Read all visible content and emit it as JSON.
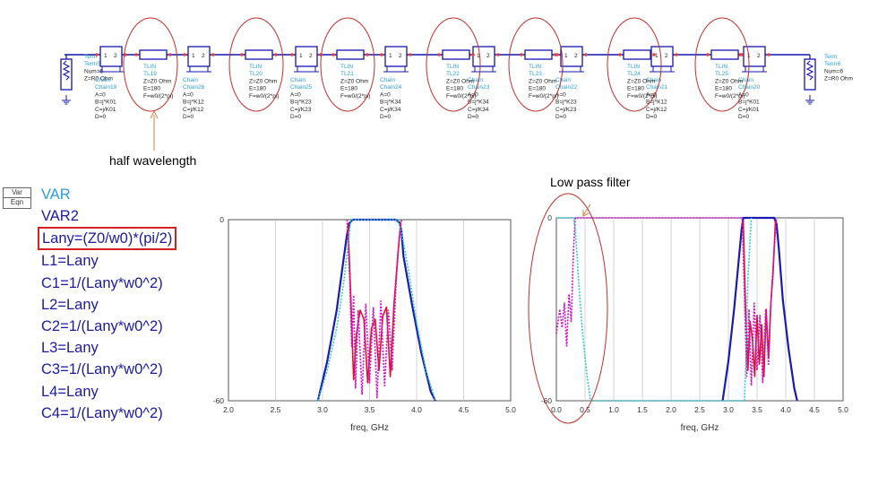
{
  "schematic": {
    "left_term": {
      "label": "Term",
      "name": "Term5",
      "num": "Num=5",
      "z": "Z=R0 Ohm"
    },
    "right_term": {
      "label": "Term",
      "name": "Term6",
      "num": "Num=6",
      "z": "Z=R0 Ohm"
    },
    "tlins": [
      {
        "kind": "TLIN",
        "name": "TL19",
        "z": "Z=Z0 Ohm",
        "e": "E=180",
        "f": "F=w0/(2*pi)"
      },
      {
        "kind": "TLIN",
        "name": "TL20",
        "z": "Z=Z0 Ohm",
        "e": "E=180",
        "f": "F=w0/(2*pi)"
      },
      {
        "kind": "TLIN",
        "name": "TL21",
        "z": "Z=Z0 Ohm",
        "e": "E=180",
        "f": "F=w0/(2*pi)"
      },
      {
        "kind": "TLIN",
        "name": "TL22",
        "z": "Z=Z0 Ohm",
        "e": "E=180",
        "f": "F=w0/(2*pi)"
      },
      {
        "kind": "TLIN",
        "name": "TL23",
        "z": "Z=Z0 Ohm",
        "e": "E=180",
        "f": "F=w0/(2*pi)"
      },
      {
        "kind": "TLIN",
        "name": "TL24",
        "z": "Z=Z0 Ohm",
        "e": "E=180",
        "f": "F=w0/(2*pi)"
      },
      {
        "kind": "TLIN",
        "name": "TL25",
        "z": "Z=Z0 Ohm",
        "e": "E=180",
        "f": "F=w0/(2*pi)"
      }
    ],
    "chains": [
      {
        "kind": "Chain",
        "name": "Chain19",
        "a": "A=0",
        "b": "B=j*K01",
        "c": "C=j/K01",
        "d": "D=0"
      },
      {
        "kind": "Chain",
        "name": "Chain26",
        "a": "A=0",
        "b": "B=j*K12",
        "c": "C=j/K12",
        "d": "D=0"
      },
      {
        "kind": "Chain",
        "name": "Chain25",
        "a": "A=0",
        "b": "B=j*K23",
        "c": "C=j/K23",
        "d": "D=0"
      },
      {
        "kind": "Chain",
        "name": "Chain24",
        "a": "A=0",
        "b": "B=j*K34",
        "c": "C=j/K34",
        "d": "D=0"
      },
      {
        "kind": "Chain",
        "name": "Chain23",
        "a": "A=0",
        "b": "B=j*K34",
        "c": "C=j/K34",
        "d": "D=0"
      },
      {
        "kind": "Chain",
        "name": "Chain22",
        "a": "A=0",
        "b": "B=j*K23",
        "c": "C=j/K23",
        "d": "D=0"
      },
      {
        "kind": "Chain",
        "name": "Chain21",
        "a": "A=0",
        "b": "B=j*K12",
        "c": "C=j/K12",
        "d": "D=0"
      },
      {
        "kind": "Chain",
        "name": "Chain20",
        "a": "A=0",
        "b": "B=j*K01",
        "c": "C=j/K01",
        "d": "D=0"
      }
    ],
    "pin1": "1",
    "pin2": "2"
  },
  "annotations": {
    "half_wavelength": "half wavelength",
    "low_pass": "Low pass filter"
  },
  "var_block": {
    "tag_line1": "Var",
    "tag_line2": "Eqn",
    "title": "VAR",
    "name": "VAR2",
    "equations": [
      "Lany=(Z0/w0)*(pi/2)",
      "L1=Lany",
      "C1=1/(Lany*w0^2)",
      "L2=Lany",
      "C2=1/(Lany*w0^2)",
      "L3=Lany",
      "C3=1/(Lany*w0^2)",
      "L4=Lany",
      "C4=1/(Lany*w0^2)"
    ]
  },
  "colors": {
    "wire": "#1414b4",
    "red_annotation": "#c0302a",
    "blue_trace": "#1a1ab0",
    "red_trace": "#e0102a",
    "magenta_trace": "#d010c8",
    "cyan_trace": "#30c8d8",
    "label_cyan": "#2a9fd6"
  },
  "chart_data": [
    {
      "type": "line",
      "xlabel": "freq, GHz",
      "ylabel": "",
      "xlim": [
        2.0,
        5.0
      ],
      "ylim": [
        -60,
        0
      ],
      "xticks": [
        "2.0",
        "2.5",
        "3.0",
        "3.5",
        "4.0",
        "4.5",
        "5.0"
      ],
      "yticks": [
        "0",
        "-60"
      ],
      "grid": true,
      "series": [
        {
          "color": "#1a1ab0",
          "x": [
            2.95,
            3.05,
            3.15,
            3.22,
            3.26,
            3.29,
            3.32,
            3.36,
            3.5,
            3.7,
            3.78,
            3.82,
            3.84,
            3.86,
            3.95,
            4.05,
            4.15,
            4.2
          ],
          "y": [
            -60,
            -47,
            -30,
            -14,
            -5,
            -1,
            0,
            0,
            0,
            0,
            0,
            -1,
            -4,
            -12,
            -28,
            -44,
            -57,
            -60
          ]
        },
        {
          "color": "#e0102a",
          "x": [
            3.27,
            3.3,
            3.33,
            3.36,
            3.4,
            3.44,
            3.48,
            3.52,
            3.56,
            3.6,
            3.64,
            3.68,
            3.72,
            3.76,
            3.8,
            3.83
          ],
          "y": [
            -1,
            -25,
            -53,
            -38,
            -30,
            -33,
            -54,
            -36,
            -33,
            -50,
            -32,
            -29,
            -52,
            -28,
            -12,
            -1
          ]
        },
        {
          "color": "#d010c8",
          "x": [
            3.26,
            3.29,
            3.31,
            3.33,
            3.35,
            3.38,
            3.42,
            3.46,
            3.5,
            3.54,
            3.58,
            3.62,
            3.66,
            3.7,
            3.74,
            3.78,
            3.81,
            3.84
          ],
          "y": [
            0,
            -20,
            -42,
            -25,
            -56,
            -30,
            -58,
            -28,
            -54,
            -29,
            -59,
            -27,
            -55,
            -30,
            -50,
            -22,
            -8,
            0
          ]
        },
        {
          "color": "#30c8d8",
          "x": [
            2.95,
            3.05,
            3.15,
            3.22,
            3.27,
            3.3,
            3.8,
            3.84,
            3.92,
            4.0,
            4.1,
            4.2
          ],
          "y": [
            -60,
            -50,
            -36,
            -22,
            -9,
            0,
            0,
            -4,
            -18,
            -34,
            -50,
            -60
          ]
        }
      ]
    },
    {
      "type": "line",
      "xlabel": "freq, GHz",
      "ylabel": "",
      "xlim": [
        0.0,
        5.0
      ],
      "ylim": [
        -60,
        0
      ],
      "xticks": [
        "0.0",
        "0.5",
        "1.0",
        "1.5",
        "2.0",
        "2.5",
        "3.0",
        "3.5",
        "4.0",
        "4.5",
        "5.0"
      ],
      "yticks": [
        "0",
        "-60"
      ],
      "grid": true,
      "series": [
        {
          "color": "#1a1ab0",
          "x": [
            2.9,
            3.0,
            3.1,
            3.18,
            3.23,
            3.26,
            3.3,
            3.5,
            3.8,
            3.84,
            3.88,
            3.95,
            4.05,
            4.15,
            4.2
          ],
          "y": [
            -60,
            -47,
            -30,
            -14,
            -4,
            0,
            0,
            0,
            0,
            -2,
            -10,
            -27,
            -43,
            -56,
            -60
          ]
        },
        {
          "color": "#e0102a",
          "x": [
            3.26,
            3.3,
            3.34,
            3.38,
            3.42,
            3.46,
            3.5,
            3.54,
            3.58,
            3.62,
            3.66,
            3.7,
            3.74,
            3.78,
            3.82
          ],
          "y": [
            -1,
            -30,
            -50,
            -34,
            -40,
            -52,
            -32,
            -48,
            -35,
            -52,
            -30,
            -46,
            -28,
            -18,
            -1
          ]
        },
        {
          "color": "#d010c8",
          "x": [
            0.0,
            0.03,
            0.06,
            0.1,
            0.14,
            0.18,
            0.22,
            0.26,
            0.3,
            0.33,
            3.24,
            3.28,
            3.32,
            3.36,
            3.4,
            3.45,
            3.5,
            3.55,
            3.6,
            3.65,
            3.7,
            3.75,
            3.8,
            3.84
          ],
          "y": [
            -38,
            -34,
            -30,
            -36,
            -28,
            -42,
            -25,
            -34,
            -10,
            0,
            0,
            -25,
            -52,
            -30,
            -55,
            -28,
            -50,
            -32,
            -54,
            -30,
            -48,
            -25,
            -10,
            0
          ]
        },
        {
          "color": "#30c8d8",
          "x": [
            0.0,
            0.2,
            0.3,
            0.33,
            0.36,
            0.4,
            0.45,
            0.5,
            0.55,
            0.6,
            3.28,
            3.3,
            3.34,
            3.4
          ],
          "y": [
            0,
            0,
            0,
            -4,
            -12,
            -24,
            -36,
            -46,
            -54,
            -60,
            -60,
            -50,
            -20,
            0
          ]
        }
      ]
    }
  ]
}
